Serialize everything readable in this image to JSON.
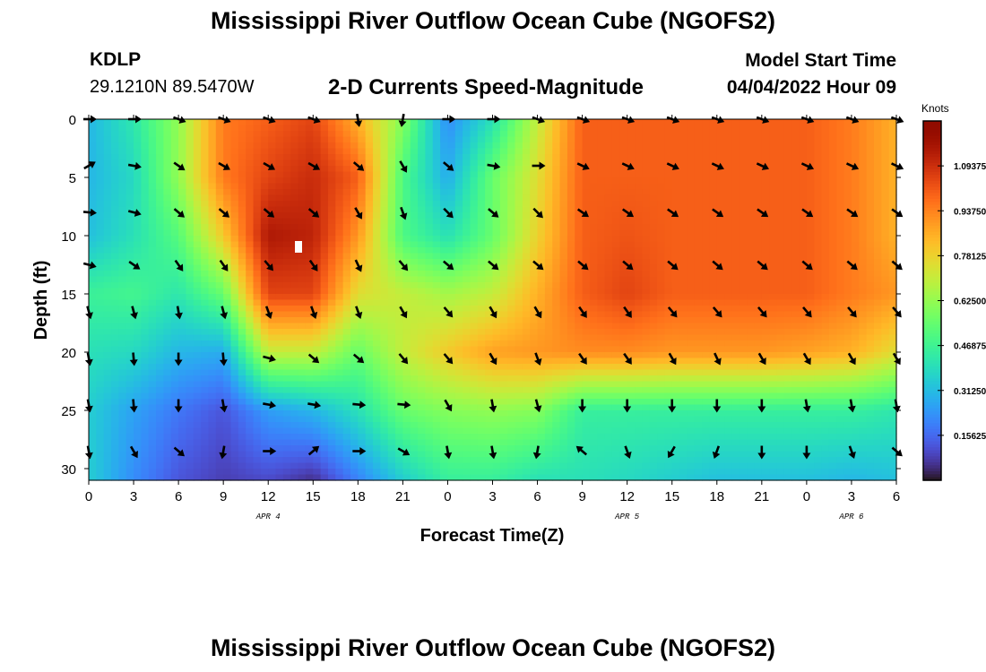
{
  "header": {
    "title": "Mississippi River Outflow Ocean Cube (NGOFS2)",
    "station": "KDLP",
    "coords": "29.1210N  89.5470W",
    "subtitle": "2-D Currents Speed-Magnitude",
    "start_label": "Model Start Time",
    "start_value": "04/04/2022 Hour 09"
  },
  "footer": {
    "title": "Mississippi River Outflow Ocean Cube (NGOFS2)"
  },
  "chart_data": {
    "type": "heatmap",
    "title": "2-D Currents Speed-Magnitude",
    "xlabel": "Forecast Time(Z)",
    "ylabel": "Depth (ft)",
    "x_hours": [
      0,
      3,
      6,
      9,
      12,
      15,
      18,
      21,
      24,
      27,
      30,
      33,
      36,
      39,
      42,
      45,
      48,
      51,
      54
    ],
    "x_tick_labels": [
      "0",
      "3",
      "6",
      "9",
      "12",
      "15",
      "18",
      "21",
      "0",
      "3",
      "6",
      "9",
      "12",
      "15",
      "18",
      "21",
      "0",
      "3",
      "6"
    ],
    "date_labels": [
      {
        "text": "APR 4",
        "hour": 12
      },
      {
        "text": "APR 5",
        "hour": 36
      },
      {
        "text": "APR 6",
        "hour": 51
      }
    ],
    "y_ticks": [
      0,
      5,
      10,
      15,
      20,
      25,
      30
    ],
    "ylim": [
      0,
      31
    ],
    "xlim": [
      0,
      54
    ],
    "colorbar": {
      "label": "Knots",
      "min": 0,
      "max": 1.25,
      "tick_values": [
        1.09375,
        0.9375,
        0.78125,
        0.625,
        0.46875,
        0.3125,
        0.15625
      ],
      "tick_labels": [
        "1.09375",
        "0.93750",
        "0.78125",
        "0.62500",
        "0.46875",
        "0.31250",
        "0.15625"
      ]
    },
    "arrow_depths": [
      0,
      4,
      8,
      12.5,
      16.5,
      20.5,
      24.5,
      28.5
    ],
    "arrow_angles_deg": [
      [
        0,
        0,
        20,
        20,
        20,
        20,
        80,
        100,
        0,
        0,
        20,
        20,
        20,
        20,
        20,
        20,
        20,
        20,
        20
      ],
      [
        -30,
        10,
        35,
        30,
        30,
        30,
        40,
        60,
        40,
        10,
        0,
        25,
        25,
        25,
        25,
        25,
        25,
        25,
        25
      ],
      [
        5,
        15,
        40,
        40,
        40,
        40,
        60,
        70,
        45,
        40,
        45,
        35,
        35,
        35,
        35,
        35,
        35,
        35,
        35
      ],
      [
        15,
        35,
        55,
        55,
        50,
        55,
        65,
        50,
        40,
        40,
        40,
        40,
        40,
        40,
        40,
        40,
        40,
        40,
        40
      ],
      [
        75,
        75,
        80,
        75,
        70,
        70,
        70,
        60,
        50,
        60,
        60,
        55,
        55,
        50,
        50,
        50,
        50,
        50,
        50
      ],
      [
        80,
        85,
        90,
        85,
        15,
        40,
        40,
        50,
        50,
        60,
        70,
        55,
        55,
        60,
        65,
        60,
        60,
        60,
        60
      ],
      [
        80,
        85,
        90,
        80,
        10,
        10,
        5,
        5,
        60,
        80,
        75,
        90,
        90,
        90,
        90,
        90,
        80,
        80,
        80
      ],
      [
        80,
        60,
        40,
        100,
        0,
        -40,
        0,
        30,
        80,
        80,
        100,
        -140,
        70,
        120,
        110,
        90,
        90,
        70,
        40
      ]
    ],
    "speed_grid_hours": [
      0,
      3,
      6,
      9,
      12,
      15,
      18,
      21,
      24,
      27,
      30,
      33,
      36,
      39,
      42,
      45,
      48,
      51,
      54
    ],
    "speed_grid_depths": [
      0,
      5,
      10,
      15,
      20,
      25,
      31
    ],
    "speed_knots": [
      [
        0.3,
        0.42,
        0.62,
        0.95,
        1.0,
        1.05,
        0.85,
        0.6,
        0.22,
        0.4,
        0.7,
        1.0,
        1.0,
        1.0,
        1.0,
        1.0,
        1.0,
        0.95,
        0.85
      ],
      [
        0.3,
        0.38,
        0.62,
        0.95,
        1.05,
        1.1,
        1.0,
        0.5,
        0.28,
        0.55,
        0.75,
        1.0,
        1.0,
        1.0,
        1.0,
        1.0,
        1.0,
        0.95,
        0.85
      ],
      [
        0.32,
        0.4,
        0.52,
        0.8,
        1.15,
        1.12,
        0.9,
        0.5,
        0.4,
        0.55,
        0.78,
        1.0,
        1.02,
        1.0,
        1.0,
        1.0,
        1.0,
        0.95,
        0.85
      ],
      [
        0.46,
        0.48,
        0.42,
        0.55,
        1.05,
        1.05,
        0.75,
        0.7,
        0.65,
        0.7,
        0.85,
        1.0,
        1.05,
        1.0,
        1.0,
        1.0,
        1.0,
        0.95,
        0.9
      ],
      [
        0.4,
        0.38,
        0.3,
        0.28,
        0.7,
        0.7,
        0.55,
        0.7,
        0.8,
        0.88,
        0.9,
        0.92,
        0.92,
        0.9,
        0.9,
        0.9,
        0.88,
        0.85,
        0.75
      ],
      [
        0.35,
        0.26,
        0.18,
        0.12,
        0.25,
        0.3,
        0.4,
        0.55,
        0.6,
        0.62,
        0.6,
        0.45,
        0.45,
        0.45,
        0.45,
        0.45,
        0.45,
        0.45,
        0.42
      ],
      [
        0.35,
        0.22,
        0.12,
        0.08,
        0.1,
        0.05,
        0.2,
        0.35,
        0.45,
        0.45,
        0.4,
        0.4,
        0.38,
        0.35,
        0.32,
        0.32,
        0.32,
        0.3,
        0.32
      ]
    ]
  }
}
